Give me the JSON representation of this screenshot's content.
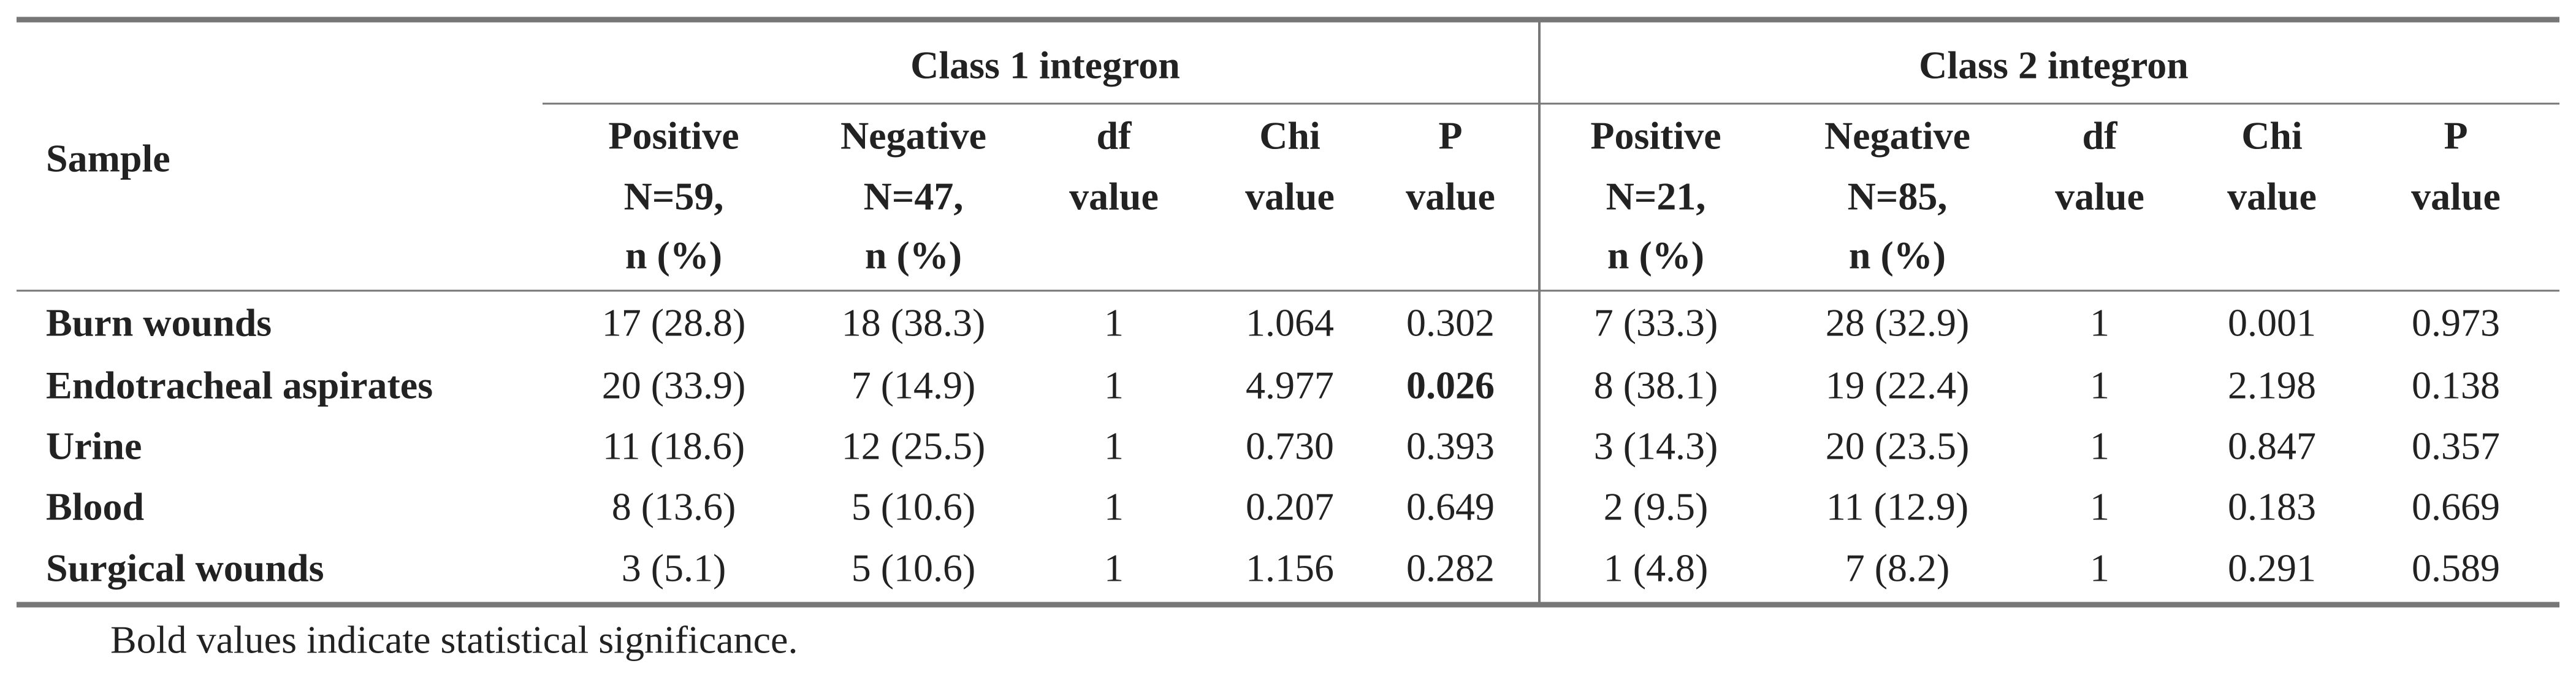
{
  "table": {
    "groups": [
      "Class 1 integron",
      "Class 2 integron"
    ],
    "sample_header": "Sample",
    "columns": [
      [
        "Positive",
        "N=59,",
        "n (%)"
      ],
      [
        "Negative",
        "N=47,",
        "n (%)"
      ],
      [
        "df",
        "value"
      ],
      [
        "Chi",
        "value"
      ],
      [
        "P",
        "value"
      ],
      [
        "Positive",
        "N=21,",
        "n (%)"
      ],
      [
        "Negative",
        "N=85,",
        "n (%)"
      ],
      [
        "df",
        "value"
      ],
      [
        "Chi",
        "value"
      ],
      [
        "P",
        "value"
      ]
    ],
    "rows": [
      [
        "Burn wounds",
        "17 (28.8)",
        "18 (38.3)",
        "1",
        "1.064",
        "0.302",
        "7 (33.3)",
        "28 (32.9)",
        "1",
        "0.001",
        "0.973"
      ],
      [
        "Endotracheal aspirates",
        "20 (33.9)",
        "7 (14.9)",
        "1",
        "4.977",
        {
          "text": "0.026",
          "bold": true
        },
        "8 (38.1)",
        "19 (22.4)",
        "1",
        "2.198",
        "0.138"
      ],
      [
        "Urine",
        "11 (18.6)",
        "12 (25.5)",
        "1",
        "0.730",
        "0.393",
        "3 (14.3)",
        "20 (23.5)",
        "1",
        "0.847",
        "0.357"
      ],
      [
        "Blood",
        "8 (13.6)",
        "5 (10.6)",
        "1",
        "0.207",
        "0.649",
        "2 (9.5)",
        "11 (12.9)",
        "1",
        "0.183",
        "0.669"
      ],
      [
        "Surgical wounds",
        "3 (5.1)",
        "5 (10.6)",
        "1",
        "1.156",
        "0.282",
        "1 (4.8)",
        "7 (8.2)",
        "1",
        "0.291",
        "0.589"
      ]
    ],
    "footnote": "Bold values indicate statistical significance."
  }
}
